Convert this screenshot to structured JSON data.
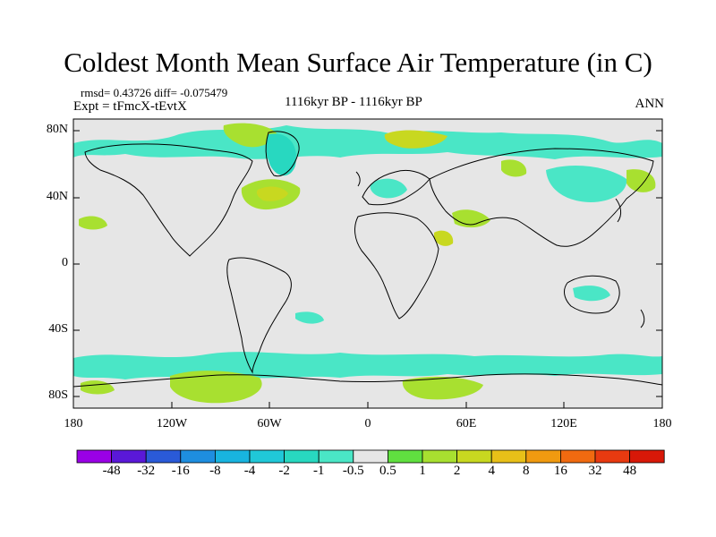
{
  "title": "Coldest Month Mean Surface Air Temperature (in C)",
  "stats": {
    "rmsd_label": "rmsd= 0.43726",
    "diff_label": "diff= -0.075479"
  },
  "experiment": "Expt = tFmcX-tEvtX",
  "period": "1116kyr BP - 1116kyr BP",
  "season": "ANN",
  "map": {
    "lat_labels": [
      "80N",
      "40N",
      "0",
      "40S",
      "80S"
    ],
    "lon_labels": [
      "180",
      "120W",
      "60W",
      "0",
      "60E",
      "120E",
      "180"
    ],
    "background_color": "#e6e6e6",
    "coastline_color": "#000000"
  },
  "colorbar": {
    "labels": [
      "-48",
      "-32",
      "-16",
      "-8",
      "-4",
      "-2",
      "-1",
      "-0.5",
      "0.5",
      "1",
      "2",
      "4",
      "8",
      "16",
      "32",
      "48"
    ],
    "colors": [
      "#9a00e6",
      "#5a18d8",
      "#2a5ad8",
      "#1e8ee0",
      "#18b4e0",
      "#20c8d8",
      "#28d8c0",
      "#4ae6c6",
      "#e6e6e6",
      "#60e040",
      "#a8e030",
      "#c8d820",
      "#e8c018",
      "#f09a10",
      "#f06a10",
      "#e83a10",
      "#d81808"
    ]
  },
  "regions": [
    {
      "name": "n-atlantic-warm",
      "color": "#a8e030"
    },
    {
      "name": "arctic-warm",
      "color": "#c8d820"
    },
    {
      "name": "antarctic-warm",
      "color": "#a8e030"
    },
    {
      "name": "cool-anomaly",
      "color": "#4ae6c6"
    }
  ]
}
